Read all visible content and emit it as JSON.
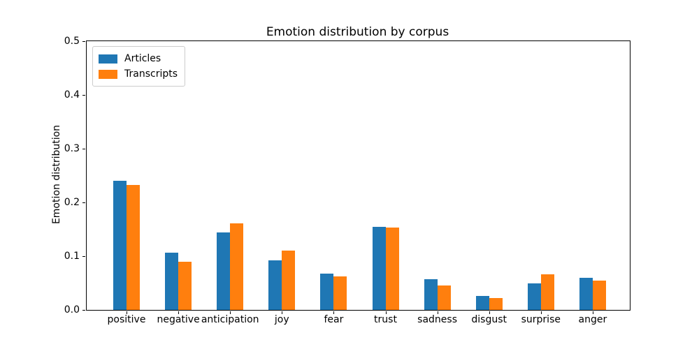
{
  "chart_data": {
    "type": "bar",
    "title": "Emotion distribution by corpus",
    "xlabel": "",
    "ylabel": "Emotion distribution",
    "categories": [
      "positive",
      "negative",
      "anticipation",
      "joy",
      "fear",
      "trust",
      "sadness",
      "disgust",
      "surprise",
      "anger"
    ],
    "series": [
      {
        "name": "Articles",
        "color": "#1f77b4",
        "values": [
          0.24,
          0.107,
          0.144,
          0.092,
          0.068,
          0.155,
          0.057,
          0.026,
          0.05,
          0.06
        ]
      },
      {
        "name": "Transcripts",
        "color": "#ff7f0e",
        "values": [
          0.232,
          0.089,
          0.161,
          0.111,
          0.062,
          0.153,
          0.046,
          0.022,
          0.066,
          0.054
        ]
      }
    ],
    "ylim": [
      0.0,
      0.5
    ],
    "yticks": [
      0.0,
      0.1,
      0.2,
      0.3,
      0.4,
      0.5
    ],
    "grid": false,
    "legend_position": "upper left"
  }
}
